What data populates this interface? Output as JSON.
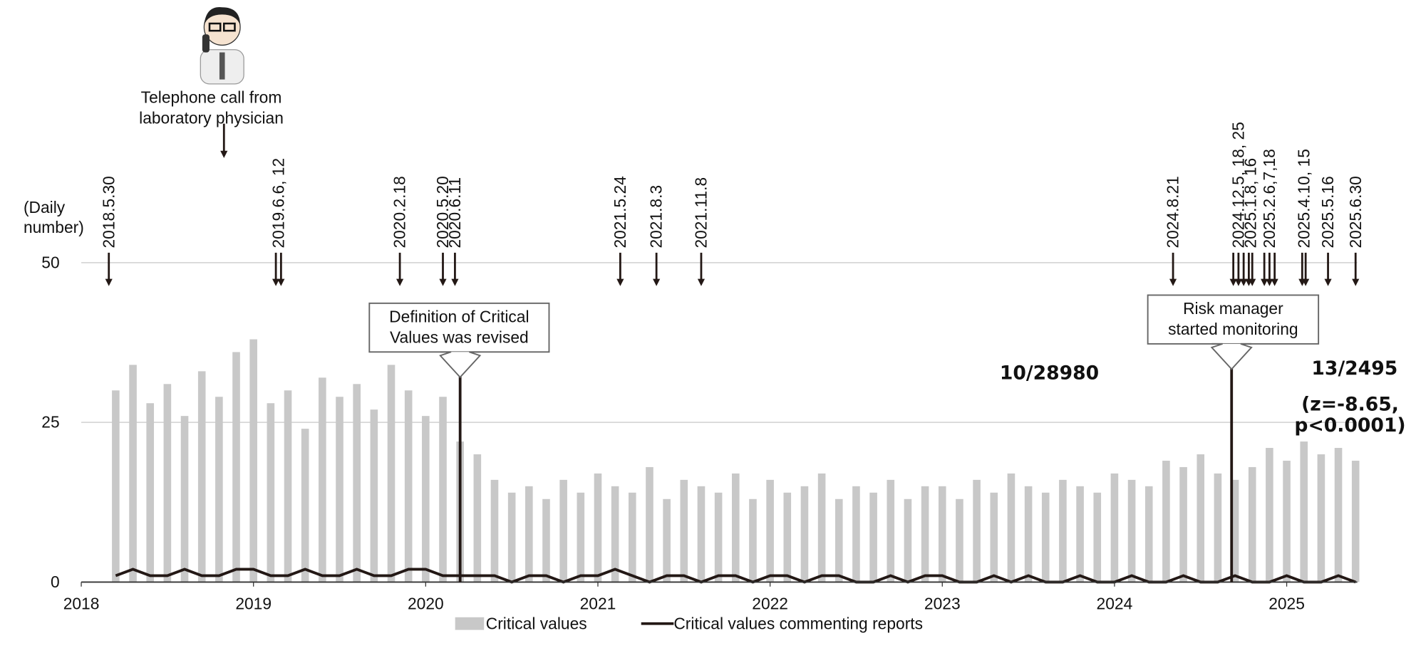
{
  "chart_data": {
    "type": "bar",
    "y_label": [
      "(Daily",
      "number)"
    ],
    "xlim": [
      2018,
      2025.41
    ],
    "xticks": [
      2018,
      2019,
      2020,
      2021,
      2022,
      2023,
      2024,
      2025
    ],
    "ylim": [
      0,
      50
    ],
    "yticks": [
      0,
      25,
      50
    ],
    "grid": true,
    "x": [
      2018.2,
      2018.3,
      2018.4,
      2018.5,
      2018.6,
      2018.7,
      2018.8,
      2018.9,
      2019.0,
      2019.1,
      2019.2,
      2019.3,
      2019.4,
      2019.5,
      2019.6,
      2019.7,
      2019.8,
      2019.9,
      2020.0,
      2020.1,
      2020.2,
      2020.3,
      2020.4,
      2020.5,
      2020.6,
      2020.7,
      2020.8,
      2020.9,
      2021.0,
      2021.1,
      2021.2,
      2021.3,
      2021.4,
      2021.5,
      2021.6,
      2021.7,
      2021.8,
      2021.9,
      2022.0,
      2022.1,
      2022.2,
      2022.3,
      2022.4,
      2022.5,
      2022.6,
      2022.7,
      2022.8,
      2022.9,
      2023.0,
      2023.1,
      2023.2,
      2023.3,
      2023.4,
      2023.5,
      2023.6,
      2023.7,
      2023.8,
      2023.9,
      2024.0,
      2024.1,
      2024.2,
      2024.3,
      2024.4,
      2024.5,
      2024.6,
      2024.7,
      2024.8,
      2024.9,
      2025.0,
      2025.1,
      2025.2,
      2025.3,
      2025.4
    ],
    "series": [
      {
        "name": "Critical values",
        "color": "#c8c8c8",
        "values": [
          30,
          34,
          28,
          31,
          26,
          33,
          29,
          36,
          38,
          28,
          30,
          24,
          32,
          29,
          31,
          27,
          34,
          30,
          26,
          29,
          22,
          20,
          16,
          14,
          15,
          13,
          16,
          14,
          17,
          15,
          14,
          18,
          13,
          16,
          15,
          14,
          17,
          13,
          16,
          14,
          15,
          17,
          13,
          15,
          14,
          16,
          13,
          15,
          15,
          13,
          16,
          14,
          17,
          15,
          14,
          16,
          15,
          14,
          17,
          16,
          15,
          19,
          18,
          20,
          17,
          16,
          18,
          21,
          19,
          22,
          20,
          21,
          19
        ]
      },
      {
        "name": "Critical values commenting reports",
        "color": "#231815",
        "values": [
          1,
          2,
          1,
          1,
          2,
          1,
          1,
          2,
          2,
          1,
          1,
          2,
          1,
          1,
          2,
          1,
          1,
          2,
          2,
          1,
          1,
          1,
          1,
          0,
          1,
          1,
          0,
          1,
          1,
          2,
          1,
          0,
          1,
          1,
          0,
          1,
          1,
          0,
          1,
          1,
          0,
          1,
          1,
          0,
          0,
          1,
          0,
          1,
          1,
          0,
          0,
          1,
          0,
          1,
          0,
          0,
          1,
          0,
          0,
          1,
          0,
          0,
          1,
          0,
          0,
          1,
          0,
          0,
          1,
          0,
          0,
          1,
          0
        ]
      }
    ],
    "date_arrows": [
      {
        "label": "2018.5.30",
        "x": [
          2018.16
        ]
      },
      {
        "label": "2019.6.6, 12",
        "x": [
          2019.13,
          2019.16
        ]
      },
      {
        "label": "2020.2.18",
        "x": [
          2019.85
        ]
      },
      {
        "label": "2020.5.20",
        "x": [
          2020.1
        ]
      },
      {
        "label": "2020.6.11",
        "x": [
          2020.17
        ]
      },
      {
        "label": "2021.5.24",
        "x": [
          2021.13
        ]
      },
      {
        "label": "2021.8.3",
        "x": [
          2021.34
        ]
      },
      {
        "label": "2021.11.8",
        "x": [
          2021.6
        ]
      },
      {
        "label": "2024.8.21",
        "x": [
          2024.34
        ]
      },
      {
        "label": "2024.12.5, 18, 25",
        "x": [
          2024.69,
          2024.72,
          2024.75
        ]
      },
      {
        "label": "2025.1.8, 16",
        "x": [
          2024.78,
          2024.8
        ]
      },
      {
        "label": "2025.2.6,7,18",
        "x": [
          2024.87,
          2024.9,
          2024.93
        ]
      },
      {
        "label": "2025.4.10, 15",
        "x": [
          2025.09,
          2025.11
        ]
      },
      {
        "label": "2025.5.16",
        "x": [
          2025.24
        ]
      },
      {
        "label": "2025.6.30",
        "x": [
          2025.4
        ]
      }
    ],
    "phone_note": [
      "Telephone call from",
      "laboratory physician"
    ],
    "callouts": [
      {
        "lines": [
          "Definition of Critical",
          "Values was revised"
        ],
        "x": 2020.2
      },
      {
        "lines": [
          "Risk manager",
          "started monitoring"
        ],
        "x": 2024.68
      }
    ],
    "ratios": [
      [
        "10/28980"
      ],
      [
        "13/2495",
        "(z=-8.65,",
        "p<0.0001)"
      ]
    ]
  }
}
